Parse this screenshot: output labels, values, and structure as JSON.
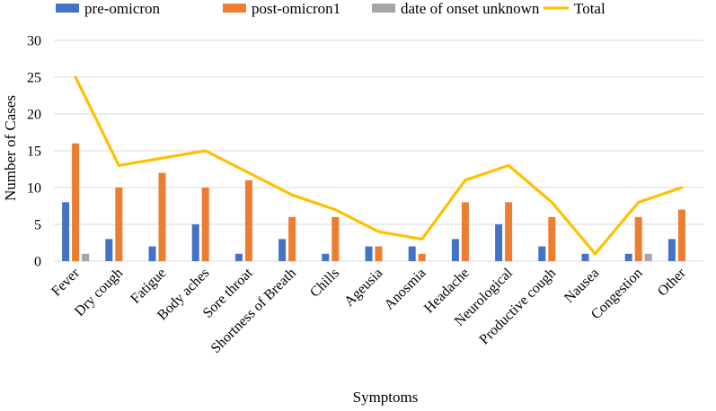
{
  "chart_data": {
    "type": "bar",
    "title": "",
    "xlabel": "Symptoms",
    "ylabel": "Number of Cases",
    "ylim": [
      0,
      30
    ],
    "yticks": [
      0,
      5,
      10,
      15,
      20,
      25,
      30
    ],
    "grid": true,
    "legend_position": "top",
    "categories": [
      "Fever",
      "Dry cough",
      "Fatigue",
      "Body aches",
      "Sore throat",
      "Shortness of Breath",
      "Chills",
      "Ageusia",
      "Anosmia",
      "Headache",
      "Neurological",
      "Productive cough",
      "Nausea",
      "Congestion",
      "Other"
    ],
    "series": [
      {
        "name": "pre-omicron",
        "kind": "bar",
        "color": "#4472C4",
        "values": [
          8,
          3,
          2,
          5,
          1,
          3,
          1,
          2,
          2,
          3,
          5,
          2,
          1,
          1,
          3
        ]
      },
      {
        "name": "post-omicron1",
        "kind": "bar",
        "color": "#ED7D31",
        "values": [
          16,
          10,
          12,
          10,
          11,
          6,
          6,
          2,
          1,
          8,
          8,
          6,
          0,
          6,
          7
        ]
      },
      {
        "name": "date of onset unknown",
        "kind": "bar",
        "color": "#A5A5A5",
        "values": [
          1,
          0,
          0,
          0,
          0,
          0,
          0,
          0,
          0,
          0,
          0,
          0,
          0,
          1,
          0
        ]
      },
      {
        "name": "Total",
        "kind": "line",
        "color": "#FFC000",
        "values": [
          25,
          13,
          14,
          15,
          12,
          9,
          7,
          4,
          3,
          11,
          13,
          8,
          1,
          8,
          10
        ]
      }
    ]
  }
}
